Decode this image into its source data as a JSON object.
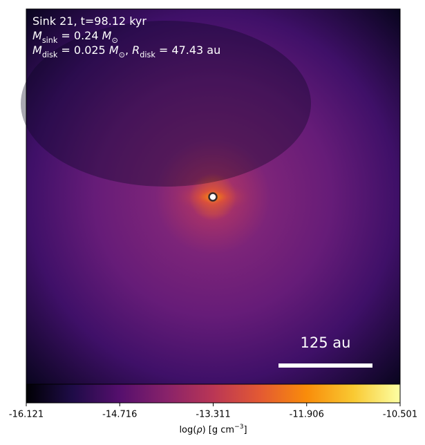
{
  "chart_data": {
    "type": "heatmap",
    "colormap": "inferno",
    "annotations": [
      [
        {
          "text": "Sink 21, t=98.12 kyr"
        }
      ],
      [
        {
          "text": "M",
          "style": "italic"
        },
        {
          "text": "sink",
          "style": "sub"
        },
        {
          "text": " = 0.24 "
        },
        {
          "text": "M",
          "style": "italic"
        },
        {
          "text": "⊙",
          "style": "sub"
        }
      ],
      [
        {
          "text": "M",
          "style": "italic"
        },
        {
          "text": "disk",
          "style": "sub"
        },
        {
          "text": " = 0.025 "
        },
        {
          "text": "M",
          "style": "italic"
        },
        {
          "text": "⊙",
          "style": "sub"
        },
        {
          "text": ", "
        },
        {
          "text": "R",
          "style": "italic"
        },
        {
          "text": "disk",
          "style": "sub"
        },
        {
          "text": " = 47.43 au"
        }
      ]
    ],
    "scale_bar": {
      "label": "125 au"
    },
    "colorbar": {
      "label": [
        {
          "text": "log("
        },
        {
          "text": "ρ",
          "style": "italic"
        },
        {
          "text": ") [g cm"
        },
        {
          "text": "−3",
          "style": "sup"
        },
        {
          "text": "]"
        }
      ],
      "clim": [
        -16.121,
        -10.501
      ],
      "ticks": [
        -16.121,
        -14.716,
        -13.311,
        -11.906,
        -10.501
      ]
    }
  }
}
